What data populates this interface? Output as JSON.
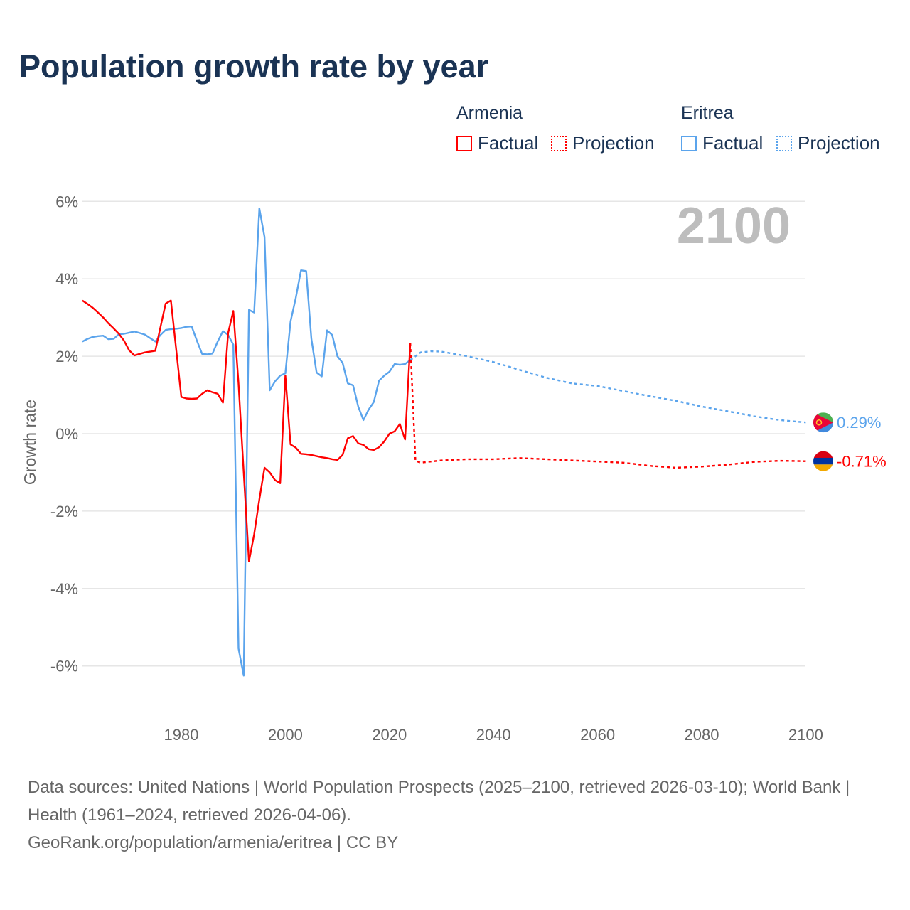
{
  "title": "Population growth rate by year",
  "legend": {
    "groups": [
      {
        "country": "Armenia",
        "color": "#ff0000",
        "factual": "Factual",
        "projection": "Projection"
      },
      {
        "country": "Eritrea",
        "color": "#5ba4ec",
        "factual": "Factual",
        "projection": "Projection"
      }
    ]
  },
  "year_display": "2100",
  "footer": {
    "line1": "Data sources: United Nations | World Population Prospects (2025–2100, retrieved 2026-03-10); World Bank | Health (1961–2024, retrieved 2026-04-06).",
    "line2": "GeoRank.org/population/armenia/eritrea | CC BY"
  },
  "chart_data": {
    "type": "line",
    "title": "Population growth rate by year",
    "xlabel": "",
    "ylabel": "Growth rate",
    "xlim": [
      1961,
      2100
    ],
    "ylim": [
      -7,
      6.5
    ],
    "xticks": [
      1980,
      2000,
      2020,
      2040,
      2060,
      2080,
      2100
    ],
    "yticks": [
      {
        "v": 6,
        "label": "6%"
      },
      {
        "v": 4,
        "label": "4%"
      },
      {
        "v": 2,
        "label": "2%"
      },
      {
        "v": 0,
        "label": "0%"
      },
      {
        "v": -2,
        "label": "-2%"
      },
      {
        "v": -4,
        "label": "-4%"
      },
      {
        "v": -6,
        "label": "-6%"
      }
    ],
    "grid": true,
    "series": [
      {
        "name": "Armenia",
        "color": "#ff0000",
        "end_label": "-0.71%",
        "factual": {
          "start": 1961,
          "values": [
            3.44,
            3.35,
            3.25,
            3.13,
            3.0,
            2.85,
            2.72,
            2.58,
            2.4,
            2.15,
            2.02,
            2.06,
            2.1,
            2.12,
            2.14,
            2.75,
            3.36,
            3.44,
            2.2,
            0.95,
            0.91,
            0.9,
            0.91,
            1.03,
            1.12,
            1.07,
            1.03,
            0.8,
            2.6,
            3.17,
            1.3,
            -1.0,
            -3.3,
            -2.6,
            -1.7,
            -0.88,
            -1.0,
            -1.2,
            -1.28,
            1.5,
            -0.28,
            -0.36,
            -0.52,
            -0.53,
            -0.55,
            -0.58,
            -0.61,
            -0.63,
            -0.66,
            -0.68,
            -0.55,
            -0.12,
            -0.06,
            -0.25,
            -0.29,
            -0.4,
            -0.42,
            -0.35,
            -0.2,
            0.0,
            0.06,
            0.25,
            -0.15,
            2.33
          ]
        },
        "projection": {
          "years": [
            2024,
            2025,
            2026,
            2030,
            2035,
            2040,
            2045,
            2050,
            2055,
            2060,
            2065,
            2070,
            2075,
            2080,
            2085,
            2090,
            2095,
            2100
          ],
          "values": [
            2.33,
            -0.7,
            -0.75,
            -0.69,
            -0.66,
            -0.66,
            -0.63,
            -0.66,
            -0.69,
            -0.72,
            -0.75,
            -0.83,
            -0.88,
            -0.85,
            -0.8,
            -0.73,
            -0.7,
            -0.71
          ]
        }
      },
      {
        "name": "Eritrea",
        "color": "#5ba4ec",
        "end_label": "0.29%",
        "factual": {
          "start": 1961,
          "values": [
            2.38,
            2.45,
            2.5,
            2.52,
            2.53,
            2.44,
            2.45,
            2.57,
            2.58,
            2.61,
            2.64,
            2.6,
            2.56,
            2.47,
            2.38,
            2.55,
            2.68,
            2.7,
            2.71,
            2.73,
            2.76,
            2.77,
            2.4,
            2.06,
            2.05,
            2.07,
            2.38,
            2.65,
            2.55,
            2.3,
            -5.55,
            -6.25,
            3.2,
            3.13,
            5.82,
            5.08,
            1.12,
            1.35,
            1.5,
            1.56,
            2.9,
            3.5,
            4.22,
            4.2,
            2.45,
            1.58,
            1.48,
            2.67,
            2.55,
            2.0,
            1.83,
            1.3,
            1.25,
            0.7,
            0.35,
            0.62,
            0.82,
            1.37,
            1.5,
            1.6,
            1.8,
            1.78,
            1.8,
            1.9
          ]
        },
        "projection": {
          "years": [
            2024,
            2026,
            2028,
            2030,
            2035,
            2040,
            2045,
            2050,
            2055,
            2060,
            2065,
            2070,
            2075,
            2080,
            2085,
            2090,
            2095,
            2100
          ],
          "values": [
            1.9,
            2.1,
            2.13,
            2.12,
            2.0,
            1.85,
            1.65,
            1.45,
            1.3,
            1.23,
            1.1,
            0.97,
            0.85,
            0.7,
            0.58,
            0.45,
            0.35,
            0.29
          ]
        }
      }
    ]
  }
}
